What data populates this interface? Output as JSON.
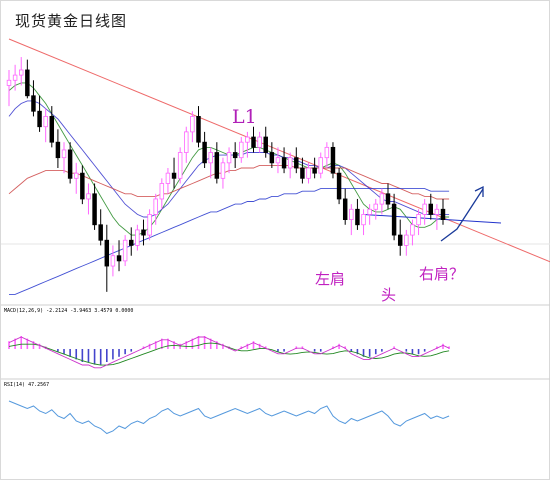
{
  "title": "现货黄金日线图",
  "annotations": {
    "l1": "L1",
    "left_shoulder": "左肩",
    "head": "头",
    "right_shoulder": "右肩？"
  },
  "indicators": {
    "macd_label": "MACD(12,26,9) -2.2124 -3.9463 3.4579 0.0000",
    "rsi_label": "RSI(14) 47.2567"
  },
  "colors": {
    "up": "#ff66ff",
    "down": "#000000",
    "trendline": "#ee6a6a",
    "blue_line": "#2233cc",
    "annotation": "#c020c0",
    "arrow": "#1a3a9a"
  },
  "chart_data": [
    {
      "type": "candlestick",
      "title": "现货黄金日线图",
      "series_note": "daily gold candles with moving averages; y values relative (0-100 scale)",
      "candles": [
        {
          "o": 82,
          "h": 88,
          "l": 74,
          "c": 84
        },
        {
          "o": 84,
          "h": 90,
          "l": 80,
          "c": 86
        },
        {
          "o": 86,
          "h": 93,
          "l": 82,
          "c": 88
        },
        {
          "o": 88,
          "h": 92,
          "l": 77,
          "c": 78
        },
        {
          "o": 78,
          "h": 84,
          "l": 70,
          "c": 72
        },
        {
          "o": 72,
          "h": 78,
          "l": 64,
          "c": 66
        },
        {
          "o": 66,
          "h": 73,
          "l": 60,
          "c": 70
        },
        {
          "o": 70,
          "h": 74,
          "l": 58,
          "c": 60
        },
        {
          "o": 60,
          "h": 65,
          "l": 50,
          "c": 54
        },
        {
          "o": 54,
          "h": 60,
          "l": 48,
          "c": 57
        },
        {
          "o": 57,
          "h": 60,
          "l": 44,
          "c": 46
        },
        {
          "o": 46,
          "h": 52,
          "l": 40,
          "c": 48
        },
        {
          "o": 48,
          "h": 51,
          "l": 36,
          "c": 38
        },
        {
          "o": 38,
          "h": 44,
          "l": 32,
          "c": 40
        },
        {
          "o": 40,
          "h": 44,
          "l": 26,
          "c": 28
        },
        {
          "o": 28,
          "h": 34,
          "l": 20,
          "c": 22
        },
        {
          "o": 22,
          "h": 28,
          "l": 2,
          "c": 12
        },
        {
          "o": 12,
          "h": 20,
          "l": 8,
          "c": 16
        },
        {
          "o": 16,
          "h": 22,
          "l": 10,
          "c": 14
        },
        {
          "o": 14,
          "h": 24,
          "l": 12,
          "c": 22
        },
        {
          "o": 22,
          "h": 27,
          "l": 16,
          "c": 20
        },
        {
          "o": 20,
          "h": 28,
          "l": 18,
          "c": 26
        },
        {
          "o": 26,
          "h": 30,
          "l": 20,
          "c": 24
        },
        {
          "o": 24,
          "h": 34,
          "l": 22,
          "c": 32
        },
        {
          "o": 32,
          "h": 40,
          "l": 28,
          "c": 38
        },
        {
          "o": 38,
          "h": 46,
          "l": 34,
          "c": 44
        },
        {
          "o": 44,
          "h": 50,
          "l": 40,
          "c": 48
        },
        {
          "o": 48,
          "h": 54,
          "l": 42,
          "c": 46
        },
        {
          "o": 46,
          "h": 58,
          "l": 44,
          "c": 56
        },
        {
          "o": 56,
          "h": 66,
          "l": 52,
          "c": 64
        },
        {
          "o": 64,
          "h": 72,
          "l": 60,
          "c": 70
        },
        {
          "o": 70,
          "h": 74,
          "l": 58,
          "c": 60
        },
        {
          "o": 60,
          "h": 64,
          "l": 50,
          "c": 52
        },
        {
          "o": 52,
          "h": 58,
          "l": 46,
          "c": 56
        },
        {
          "o": 56,
          "h": 60,
          "l": 44,
          "c": 46
        },
        {
          "o": 46,
          "h": 54,
          "l": 42,
          "c": 52
        },
        {
          "o": 52,
          "h": 58,
          "l": 48,
          "c": 56
        },
        {
          "o": 56,
          "h": 60,
          "l": 50,
          "c": 54
        },
        {
          "o": 54,
          "h": 62,
          "l": 52,
          "c": 60
        },
        {
          "o": 60,
          "h": 64,
          "l": 54,
          "c": 62
        },
        {
          "o": 62,
          "h": 66,
          "l": 56,
          "c": 58
        },
        {
          "o": 58,
          "h": 64,
          "l": 56,
          "c": 62
        },
        {
          "o": 62,
          "h": 66,
          "l": 54,
          "c": 56
        },
        {
          "o": 56,
          "h": 60,
          "l": 50,
          "c": 52
        },
        {
          "o": 52,
          "h": 58,
          "l": 48,
          "c": 54
        },
        {
          "o": 54,
          "h": 58,
          "l": 48,
          "c": 50
        },
        {
          "o": 50,
          "h": 56,
          "l": 46,
          "c": 54
        },
        {
          "o": 54,
          "h": 58,
          "l": 48,
          "c": 50
        },
        {
          "o": 50,
          "h": 54,
          "l": 44,
          "c": 46
        },
        {
          "o": 46,
          "h": 52,
          "l": 44,
          "c": 50
        },
        {
          "o": 50,
          "h": 54,
          "l": 46,
          "c": 48
        },
        {
          "o": 48,
          "h": 56,
          "l": 46,
          "c": 54
        },
        {
          "o": 54,
          "h": 60,
          "l": 50,
          "c": 58
        },
        {
          "o": 58,
          "h": 60,
          "l": 46,
          "c": 48
        },
        {
          "o": 48,
          "h": 50,
          "l": 36,
          "c": 38
        },
        {
          "o": 38,
          "h": 42,
          "l": 28,
          "c": 30
        },
        {
          "o": 30,
          "h": 36,
          "l": 24,
          "c": 34
        },
        {
          "o": 34,
          "h": 38,
          "l": 26,
          "c": 28
        },
        {
          "o": 28,
          "h": 34,
          "l": 24,
          "c": 32
        },
        {
          "o": 32,
          "h": 36,
          "l": 28,
          "c": 34
        },
        {
          "o": 34,
          "h": 38,
          "l": 30,
          "c": 36
        },
        {
          "o": 36,
          "h": 42,
          "l": 32,
          "c": 40
        },
        {
          "o": 40,
          "h": 44,
          "l": 34,
          "c": 36
        },
        {
          "o": 36,
          "h": 40,
          "l": 22,
          "c": 24
        },
        {
          "o": 24,
          "h": 30,
          "l": 16,
          "c": 20
        },
        {
          "o": 20,
          "h": 26,
          "l": 16,
          "c": 24
        },
        {
          "o": 24,
          "h": 30,
          "l": 20,
          "c": 28
        },
        {
          "o": 28,
          "h": 34,
          "l": 24,
          "c": 32
        },
        {
          "o": 32,
          "h": 38,
          "l": 28,
          "c": 36
        },
        {
          "o": 36,
          "h": 40,
          "l": 30,
          "c": 32
        },
        {
          "o": 32,
          "h": 36,
          "l": 26,
          "c": 34
        },
        {
          "o": 34,
          "h": 38,
          "l": 28,
          "c": 30
        }
      ],
      "moving_averages": [
        {
          "color": "#228822",
          "values": [
            80,
            82,
            83,
            83,
            81,
            78,
            75,
            71,
            67,
            63,
            59,
            55,
            51,
            47,
            43,
            39,
            35,
            31,
            28,
            26,
            24,
            24,
            25,
            27,
            30,
            34,
            38,
            42,
            46,
            50,
            54,
            57,
            58,
            58,
            57,
            56,
            55,
            55,
            56,
            57,
            58,
            58,
            57,
            56,
            55,
            54,
            53,
            52,
            51,
            50,
            50,
            50,
            51,
            52,
            51,
            48,
            44,
            40,
            36,
            34,
            33,
            33,
            34,
            35,
            34,
            31,
            28,
            27,
            27,
            28,
            30,
            31,
            31
          ]
        },
        {
          "color": "#3333cc",
          "values": [
            70,
            73,
            75,
            76,
            76,
            75,
            73,
            71,
            69,
            66,
            63,
            60,
            57,
            54,
            51,
            48,
            45,
            42,
            39,
            36,
            34,
            32,
            31,
            31,
            32,
            34,
            36,
            39,
            42,
            45,
            48,
            51,
            53,
            54,
            55,
            55,
            55,
            55,
            55,
            56,
            56,
            56,
            56,
            55,
            55,
            54,
            54,
            53,
            52,
            51,
            51,
            50,
            50,
            51,
            51,
            50,
            48,
            46,
            44,
            42,
            40,
            38,
            37,
            37,
            36,
            35,
            34,
            33,
            32,
            32,
            32,
            32,
            32
          ]
        },
        {
          "color": "#cc4444",
          "values": [
            40,
            42,
            44,
            46,
            47,
            48,
            49,
            49,
            49,
            49,
            48,
            48,
            47,
            46,
            45,
            44,
            43,
            42,
            41,
            40,
            40,
            39,
            39,
            39,
            39,
            40,
            40,
            41,
            42,
            43,
            44,
            45,
            46,
            47,
            48,
            48,
            49,
            49,
            50,
            50,
            50,
            51,
            51,
            51,
            51,
            51,
            51,
            50,
            50,
            50,
            50,
            50,
            50,
            50,
            50,
            50,
            49,
            48,
            47,
            46,
            45,
            44,
            44,
            43,
            42,
            41,
            40,
            40,
            39,
            39,
            38,
            38,
            38
          ]
        },
        {
          "color": "#2233cc",
          "values": [
            1,
            1,
            2,
            3,
            4,
            5,
            6,
            7,
            8,
            9,
            10,
            11,
            12,
            13,
            14,
            15,
            16,
            17,
            18,
            19,
            20,
            21,
            22,
            23,
            24,
            25,
            26,
            27,
            28,
            29,
            30,
            31,
            32,
            33,
            33,
            34,
            35,
            36,
            36,
            37,
            37,
            38,
            38,
            39,
            39,
            40,
            40,
            40,
            41,
            41,
            41,
            42,
            42,
            42,
            42,
            42,
            42,
            42,
            42,
            42,
            42,
            42,
            42,
            42,
            42,
            42,
            42,
            42,
            42,
            41,
            41,
            41,
            41
          ]
        }
      ],
      "trendlines": [
        {
          "name": "",
          "from": [
            0,
            100
          ],
          "to": [
            82,
            20
          ]
        }
      ]
    },
    {
      "type": "bar",
      "title": "",
      "label": "MACD(12,26,9) -2.2124 -3.9463 3.4579 0.0000",
      "values": [
        3,
        4,
        5,
        4,
        3,
        2,
        1,
        0,
        -1,
        -2,
        -3,
        -4,
        -5,
        -5,
        -6,
        -6,
        -5,
        -4,
        -3,
        -2,
        -1,
        0,
        1,
        2,
        3,
        4,
        4,
        3,
        2,
        3,
        4,
        5,
        5,
        4,
        3,
        2,
        1,
        0,
        1,
        2,
        3,
        2,
        1,
        0,
        -1,
        -1,
        0,
        1,
        1,
        0,
        -1,
        -1,
        0,
        1,
        2,
        1,
        -1,
        -2,
        -3,
        -3,
        -2,
        -1,
        0,
        1,
        0,
        -1,
        -2,
        -2,
        -1,
        0,
        1,
        2,
        1
      ]
    },
    {
      "type": "line",
      "title": "",
      "label": "RSI(14) 47.2567",
      "values": [
        62,
        60,
        58,
        56,
        58,
        54,
        52,
        55,
        50,
        48,
        52,
        46,
        44,
        46,
        42,
        40,
        36,
        38,
        42,
        40,
        44,
        46,
        44,
        48,
        50,
        54,
        56,
        52,
        50,
        52,
        54,
        56,
        50,
        48,
        50,
        52,
        54,
        56,
        54,
        52,
        54,
        56,
        52,
        50,
        52,
        54,
        52,
        50,
        52,
        54,
        52,
        56,
        58,
        50,
        46,
        44,
        48,
        46,
        48,
        50,
        52,
        54,
        50,
        44,
        42,
        46,
        48,
        50,
        52,
        48,
        50,
        48,
        50
      ]
    }
  ]
}
